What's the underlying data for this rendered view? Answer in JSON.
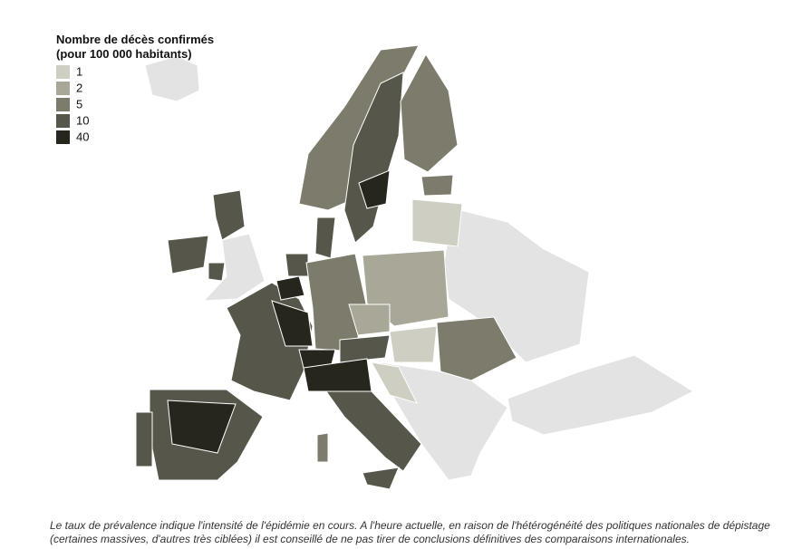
{
  "legend": {
    "title": [
      "Nombre de décès confirmés",
      "(pour 100 000 habitants)"
    ],
    "items": [
      {
        "label": "1",
        "color": "#cfcec3"
      },
      {
        "label": "2",
        "color": "#a9a898"
      },
      {
        "label": "5",
        "color": "#7d7b6b"
      },
      {
        "label": "10",
        "color": "#57564b"
      },
      {
        "label": "40",
        "color": "#27261d"
      }
    ],
    "no_data_color": "#e3e3e3"
  },
  "footnote": [
    "Le taux de prévalence indique l'intensité de l'épidémie en cours. A l'heure actuelle, en raison de l'hétérogénéité des politiques nationales de dépistage",
    "(certaines massives, d'autres très ciblées) il est conseillé de ne pas tirer de conclusions définitives des comparaisons internationales."
  ]
}
